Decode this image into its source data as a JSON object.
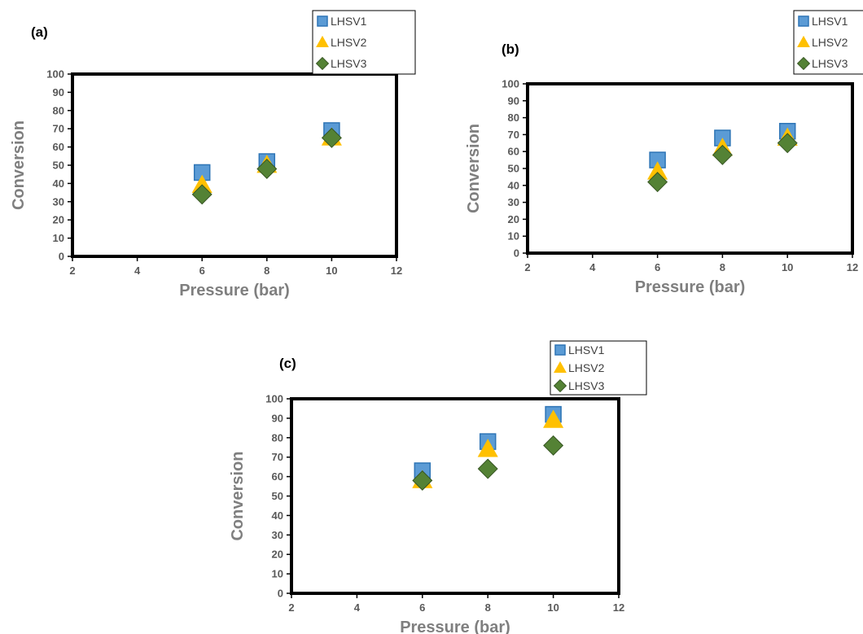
{
  "colors": {
    "LHSV1_fill": "#5b9bd5",
    "LHSV1_edge": "#2e75b6",
    "LHSV2": "#ffc000",
    "LHSV3": "#548235",
    "LHSV3_dark": "#375623",
    "frame": "#000000",
    "tick_text": "#595959",
    "axis_title": "#7f7f7f"
  },
  "chart_data": [
    {
      "type": "scatter",
      "panel_label": "(a)",
      "xlabel": "Pressure (bar)",
      "ylabel": "Conversion",
      "xlim": [
        2,
        12
      ],
      "ylim": [
        0,
        100
      ],
      "xticks": [
        2,
        4,
        6,
        8,
        10,
        12
      ],
      "yticks": [
        0,
        10,
        20,
        30,
        40,
        50,
        60,
        70,
        80,
        90,
        100
      ],
      "grid": false,
      "legend_position": "top-right",
      "series": [
        {
          "name": "LHSV1",
          "marker": "square",
          "x": [
            6,
            8,
            10
          ],
          "y": [
            46,
            52,
            69
          ]
        },
        {
          "name": "LHSV2",
          "marker": "triangle",
          "x": [
            6,
            8,
            10
          ],
          "y": [
            39,
            50,
            65
          ]
        },
        {
          "name": "LHSV3",
          "marker": "diamond",
          "x": [
            6,
            8,
            10
          ],
          "y": [
            34,
            48,
            65
          ]
        }
      ]
    },
    {
      "type": "scatter",
      "panel_label": "(b)",
      "xlabel": "Pressure (bar)",
      "ylabel": "Conversion",
      "xlim": [
        2,
        12
      ],
      "ylim": [
        0,
        100
      ],
      "xticks": [
        2,
        4,
        6,
        8,
        10,
        12
      ],
      "yticks": [
        0,
        10,
        20,
        30,
        40,
        50,
        60,
        70,
        80,
        90,
        100
      ],
      "grid": false,
      "legend_position": "top-right",
      "series": [
        {
          "name": "LHSV1",
          "marker": "square",
          "x": [
            6,
            8,
            10
          ],
          "y": [
            55,
            68,
            72
          ]
        },
        {
          "name": "LHSV2",
          "marker": "triangle",
          "x": [
            6,
            8,
            10
          ],
          "y": [
            48,
            62,
            68
          ]
        },
        {
          "name": "LHSV3",
          "marker": "diamond",
          "x": [
            6,
            8,
            10
          ],
          "y": [
            42,
            58,
            65
          ]
        }
      ]
    },
    {
      "type": "scatter",
      "panel_label": "(c)",
      "xlabel": "Pressure (bar)",
      "ylabel": "Conversion",
      "xlim": [
        2,
        12
      ],
      "ylim": [
        0,
        100
      ],
      "xticks": [
        2,
        4,
        6,
        8,
        10,
        12
      ],
      "yticks": [
        0,
        10,
        20,
        30,
        40,
        50,
        60,
        70,
        80,
        90,
        100
      ],
      "grid": false,
      "legend_position": "top-right",
      "series": [
        {
          "name": "LHSV1",
          "marker": "square",
          "x": [
            6,
            8,
            10
          ],
          "y": [
            63,
            78,
            92
          ]
        },
        {
          "name": "LHSV2",
          "marker": "triangle",
          "x": [
            6,
            8,
            10
          ],
          "y": [
            58,
            74,
            89
          ]
        },
        {
          "name": "LHSV3",
          "marker": "diamond",
          "x": [
            6,
            8,
            10
          ],
          "y": [
            58,
            64,
            76
          ]
        }
      ]
    }
  ]
}
